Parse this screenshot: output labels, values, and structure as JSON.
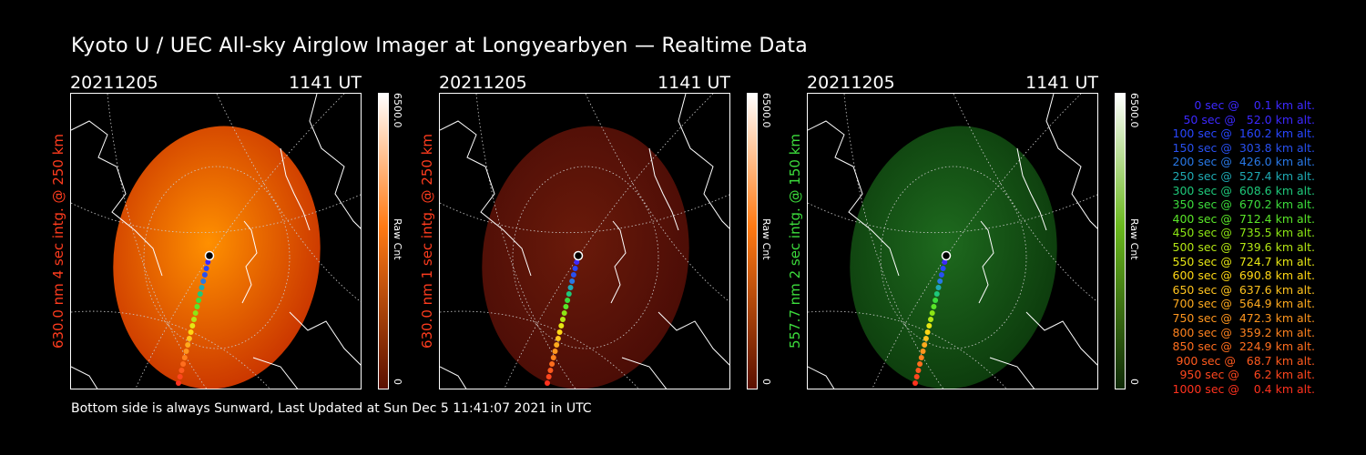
{
  "title": "Kyoto U / UEC All-sky Airglow Imager at Longyearbyen — Realtime Data",
  "footer": "Bottom side is always Sunward, Last Updated at Sun Dec  5 11:41:07 2021 in UTC",
  "panels": [
    {
      "date": "20211205",
      "time": "1141 UT",
      "side_label": "630.0 nm 4 sec intg. @ 250 km",
      "side_label_color": "#ff3c1e",
      "colorbar_max": "6500.0",
      "colorbar_min": "0",
      "colorbar_unit": "Raw Cnt",
      "image_color": "#c83200",
      "image_bright": "#ff9000",
      "colorbar_top": "#ffffff",
      "colorbar_mid": "#ff7a14",
      "colorbar_bottom": "#5a1000"
    },
    {
      "date": "20211205",
      "time": "1141 UT",
      "side_label": "630.0 nm 1 sec intg. @ 250 km",
      "side_label_color": "#ff3c1e",
      "colorbar_max": "6500.0",
      "colorbar_min": "0",
      "colorbar_unit": "Raw Cnt",
      "image_color": "#4a0c06",
      "image_bright": "#6a1a0a",
      "colorbar_top": "#ffffff",
      "colorbar_mid": "#ff7a14",
      "colorbar_bottom": "#5a1000"
    },
    {
      "date": "20211205",
      "time": "1141 UT",
      "side_label": "557.7 nm 2 sec intg. @ 150 km",
      "side_label_color": "#3cdc3c",
      "colorbar_max": "6500.0",
      "colorbar_min": "0",
      "colorbar_unit": "Raw Cnt",
      "image_color": "#0c3a0c",
      "image_bright": "#1e6a1e",
      "colorbar_top": "#ffffff",
      "colorbar_mid": "#6ab81e",
      "colorbar_bottom": "#102a08"
    }
  ],
  "legend": [
    {
      "text": "   0 sec @    0.1 km alt.",
      "color": "#3c28ff"
    },
    {
      "text": "  50 sec @   52.0 km alt.",
      "color": "#3c28ff"
    },
    {
      "text": " 100 sec @  160.2 km alt.",
      "color": "#2846ff"
    },
    {
      "text": " 150 sec @  303.8 km alt.",
      "color": "#2850f0"
    },
    {
      "text": " 200 sec @  426.0 km alt.",
      "color": "#2878e6"
    },
    {
      "text": " 250 sec @  527.4 km alt.",
      "color": "#1eaab4"
    },
    {
      "text": " 300 sec @  608.6 km alt.",
      "color": "#1ec87a"
    },
    {
      "text": " 350 sec @  670.2 km alt.",
      "color": "#3cdc3c"
    },
    {
      "text": " 400 sec @  712.4 km alt.",
      "color": "#5ae628"
    },
    {
      "text": " 450 sec @  735.5 km alt.",
      "color": "#8ce614"
    },
    {
      "text": " 500 sec @  739.6 km alt.",
      "color": "#b4e614"
    },
    {
      "text": " 550 sec @  724.7 km alt.",
      "color": "#e6e614"
    },
    {
      "text": " 600 sec @  690.8 km alt.",
      "color": "#ffd714"
    },
    {
      "text": " 650 sec @  637.6 km alt.",
      "color": "#ffc31e"
    },
    {
      "text": " 700 sec @  564.9 km alt.",
      "color": "#ffaa1e"
    },
    {
      "text": " 750 sec @  472.3 km alt.",
      "color": "#ff961e"
    },
    {
      "text": " 800 sec @  359.2 km alt.",
      "color": "#ff821e"
    },
    {
      "text": " 850 sec @  224.9 km alt.",
      "color": "#ff6e1e"
    },
    {
      "text": " 900 sec @   68.7 km alt.",
      "color": "#ff5a1e"
    },
    {
      "text": " 950 sec @    6.2 km alt.",
      "color": "#ff461e"
    },
    {
      "text": "1000 sec @    0.4 km alt.",
      "color": "#ff321e"
    }
  ]
}
